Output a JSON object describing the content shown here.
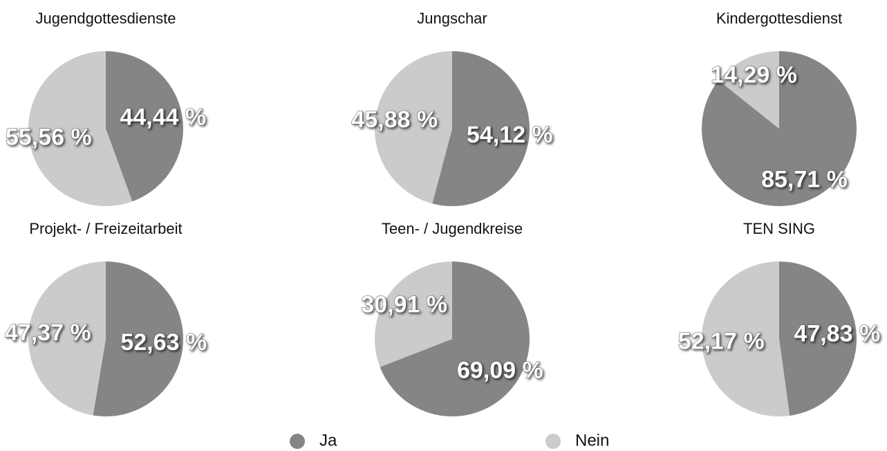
{
  "chart_data": [
    {
      "type": "pie",
      "title": "Jugendgottesdienste",
      "values": [
        44.44,
        55.56
      ],
      "value_labels": [
        "44,44 %",
        "55,56 %"
      ]
    },
    {
      "type": "pie",
      "title": "Jungschar",
      "values": [
        54.12,
        45.88
      ],
      "value_labels": [
        "54,12 %",
        "45,88 %"
      ]
    },
    {
      "type": "pie",
      "title": "Kindergottesdienst",
      "values": [
        85.71,
        14.29
      ],
      "value_labels": [
        "85,71 %",
        "14,29 %"
      ]
    },
    {
      "type": "pie",
      "title": "Projekt- / Freizeitarbeit",
      "values": [
        52.63,
        47.37
      ],
      "value_labels": [
        "52,63 %",
        "47,37 %"
      ]
    },
    {
      "type": "pie",
      "title": "Teen- / Jugendkreise",
      "values": [
        69.09,
        30.91
      ],
      "value_labels": [
        "69,09 %",
        "30,91 %"
      ]
    },
    {
      "type": "pie",
      "title": "TEN SING",
      "values": [
        47.83,
        52.17
      ],
      "value_labels": [
        "47,83 %",
        "52,17 %"
      ]
    }
  ],
  "legend": [
    {
      "name": "Ja",
      "color": "#858585"
    },
    {
      "name": "Nein",
      "color": "#cbcbcb"
    }
  ]
}
